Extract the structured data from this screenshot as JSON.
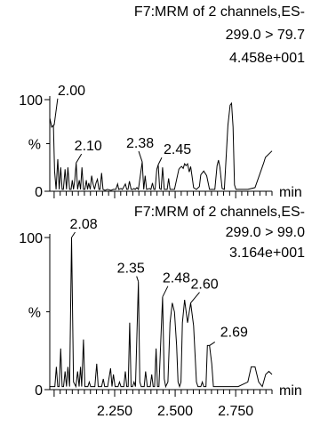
{
  "chart_data": [
    {
      "type": "line",
      "title_lines": [
        "F7:MRM of 2 channels,ES-",
        "299.0 > 79.7",
        "4.458e+001"
      ],
      "ylabel": "%",
      "y_ticks": [
        {
          "value": 0,
          "label": "0"
        },
        {
          "value": 100,
          "label": "100"
        }
      ],
      "xlabel": "min",
      "x_tick_labels": [],
      "xlim": [
        1.982,
        2.9
      ],
      "ylim": [
        0,
        100
      ],
      "grid": false,
      "annotations": [
        {
          "label": "2.00",
          "x": 2.0,
          "y": 72
        },
        {
          "label": "2.10",
          "x": 2.091,
          "y": 31
        },
        {
          "label": "2.38",
          "x": 2.364,
          "y": 32
        },
        {
          "label": "2.45",
          "x": 2.43,
          "y": 29
        }
      ],
      "series": [
        {
          "values": [
            [
              1.982,
              80
            ],
            [
              1.99,
              70
            ],
            [
              1.997,
              72
            ],
            [
              2.002,
              22
            ],
            [
              2.008,
              2
            ],
            [
              2.015,
              35
            ],
            [
              2.021,
              2
            ],
            [
              2.027,
              26
            ],
            [
              2.033,
              2
            ],
            [
              2.038,
              2
            ],
            [
              2.045,
              24
            ],
            [
              2.051,
              2
            ],
            [
              2.057,
              26
            ],
            [
              2.064,
              2
            ],
            [
              2.07,
              2
            ],
            [
              2.075,
              12
            ],
            [
              2.08,
              2
            ],
            [
              2.085,
              12
            ],
            [
              2.091,
              31
            ],
            [
              2.097,
              2
            ],
            [
              2.104,
              12
            ],
            [
              2.109,
              2
            ],
            [
              2.115,
              26
            ],
            [
              2.121,
              2
            ],
            [
              2.127,
              2
            ],
            [
              2.133,
              12
            ],
            [
              2.138,
              2
            ],
            [
              2.143,
              9
            ],
            [
              2.149,
              2
            ],
            [
              2.155,
              17
            ],
            [
              2.161,
              8
            ],
            [
              2.167,
              2
            ],
            [
              2.173,
              9
            ],
            [
              2.179,
              13
            ],
            [
              2.185,
              2
            ],
            [
              2.19,
              2
            ],
            [
              2.196,
              20
            ],
            [
              2.202,
              2
            ],
            [
              2.21,
              1
            ],
            [
              2.22,
              2
            ],
            [
              2.235,
              1
            ],
            [
              2.245,
              2
            ],
            [
              2.255,
              2
            ],
            [
              2.262,
              8
            ],
            [
              2.267,
              2
            ],
            [
              2.276,
              3
            ],
            [
              2.282,
              2
            ],
            [
              2.294,
              8
            ],
            [
              2.3,
              2
            ],
            [
              2.305,
              2
            ],
            [
              2.311,
              11
            ],
            [
              2.318,
              2
            ],
            [
              2.325,
              2
            ],
            [
              2.33,
              3
            ],
            [
              2.335,
              2
            ],
            [
              2.342,
              4
            ],
            [
              2.348,
              2
            ],
            [
              2.364,
              32
            ],
            [
              2.37,
              2
            ],
            [
              2.376,
              17
            ],
            [
              2.382,
              2
            ],
            [
              2.394,
              3
            ],
            [
              2.4,
              2
            ],
            [
              2.406,
              9
            ],
            [
              2.412,
              2
            ],
            [
              2.417,
              2
            ],
            [
              2.424,
              24
            ],
            [
              2.43,
              29
            ],
            [
              2.436,
              3
            ],
            [
              2.442,
              2
            ],
            [
              2.448,
              26
            ],
            [
              2.455,
              2
            ],
            [
              2.462,
              2
            ],
            [
              2.467,
              2
            ],
            [
              2.473,
              14
            ],
            [
              2.479,
              2
            ],
            [
              2.497,
              2
            ],
            [
              2.515,
              24
            ],
            [
              2.521,
              26
            ],
            [
              2.527,
              27
            ],
            [
              2.533,
              25
            ],
            [
              2.539,
              30
            ],
            [
              2.545,
              28
            ],
            [
              2.551,
              30
            ],
            [
              2.558,
              21
            ],
            [
              2.564,
              27
            ],
            [
              2.57,
              16
            ],
            [
              2.576,
              4
            ],
            [
              2.588,
              2
            ],
            [
              2.6,
              5
            ],
            [
              2.606,
              18
            ],
            [
              2.618,
              22
            ],
            [
              2.63,
              17
            ],
            [
              2.642,
              2
            ],
            [
              2.654,
              2
            ],
            [
              2.664,
              2
            ],
            [
              2.673,
              28
            ],
            [
              2.679,
              34
            ],
            [
              2.685,
              26
            ],
            [
              2.694,
              3
            ],
            [
              2.703,
              2
            ],
            [
              2.718,
              72
            ],
            [
              2.727,
              94
            ],
            [
              2.733,
              96
            ],
            [
              2.739,
              70
            ],
            [
              2.745,
              7
            ],
            [
              2.751,
              2
            ],
            [
              2.8,
              2
            ],
            [
              2.83,
              4
            ],
            [
              2.866,
              31
            ],
            [
              2.873,
              37
            ],
            [
              2.9,
              44
            ]
          ]
        }
      ]
    },
    {
      "type": "line",
      "title_lines": [
        "F7:MRM of 2 channels,ES-",
        "299.0 > 99.0",
        "3.164e+001"
      ],
      "ylabel": "%",
      "y_ticks": [
        {
          "value": 0,
          "label": "0"
        },
        {
          "value": 100,
          "label": "100"
        }
      ],
      "xlabel": "min",
      "x_tick_labels": [
        "2.250",
        "2.500",
        "2.750"
      ],
      "xlim": [
        1.982,
        2.9
      ],
      "ylim": [
        0,
        100
      ],
      "grid": false,
      "annotations": [
        {
          "label": "2.08",
          "x": 2.072,
          "y": 100
        },
        {
          "label": "2.35",
          "x": 2.348,
          "y": 71
        },
        {
          "label": "2.48",
          "x": 2.448,
          "y": 61
        },
        {
          "label": "2.60",
          "x": 2.564,
          "y": 57
        },
        {
          "label": "2.69",
          "x": 2.642,
          "y": 29
        }
      ],
      "series": [
        {
          "values": [
            [
              1.982,
              2
            ],
            [
              1.99,
              2
            ],
            [
              1.997,
              2
            ],
            [
              2.003,
              2
            ],
            [
              2.009,
              15
            ],
            [
              2.015,
              2
            ],
            [
              2.021,
              2
            ],
            [
              2.027,
              27
            ],
            [
              2.033,
              2
            ],
            [
              2.039,
              2
            ],
            [
              2.045,
              12
            ],
            [
              2.051,
              2
            ],
            [
              2.057,
              15
            ],
            [
              2.064,
              2
            ],
            [
              2.072,
              100
            ],
            [
              2.08,
              5
            ],
            [
              2.09,
              2
            ],
            [
              2.097,
              12
            ],
            [
              2.103,
              2
            ],
            [
              2.109,
              15
            ],
            [
              2.114,
              2
            ],
            [
              2.121,
              33
            ],
            [
              2.127,
              2
            ],
            [
              2.139,
              2
            ],
            [
              2.145,
              5
            ],
            [
              2.151,
              2
            ],
            [
              2.168,
              2
            ],
            [
              2.176,
              17
            ],
            [
              2.182,
              2
            ],
            [
              2.196,
              2
            ],
            [
              2.203,
              7
            ],
            [
              2.209,
              2
            ],
            [
              2.221,
              2
            ],
            [
              2.233,
              14
            ],
            [
              2.239,
              2
            ],
            [
              2.245,
              10
            ],
            [
              2.252,
              2
            ],
            [
              2.264,
              2
            ],
            [
              2.27,
              5
            ],
            [
              2.276,
              2
            ],
            [
              2.288,
              2
            ],
            [
              2.294,
              12
            ],
            [
              2.3,
              2
            ],
            [
              2.306,
              2
            ],
            [
              2.312,
              44
            ],
            [
              2.318,
              2
            ],
            [
              2.324,
              2
            ],
            [
              2.33,
              5
            ],
            [
              2.336,
              2
            ],
            [
              2.348,
              71
            ],
            [
              2.354,
              5
            ],
            [
              2.36,
              2
            ],
            [
              2.372,
              2
            ],
            [
              2.378,
              12
            ],
            [
              2.385,
              2
            ],
            [
              2.397,
              2
            ],
            [
              2.403,
              10
            ],
            [
              2.409,
              2
            ],
            [
              2.415,
              2
            ],
            [
              2.421,
              27
            ],
            [
              2.427,
              2
            ],
            [
              2.433,
              2
            ],
            [
              2.448,
              61
            ],
            [
              2.455,
              7
            ],
            [
              2.461,
              2
            ],
            [
              2.47,
              5
            ],
            [
              2.479,
              44
            ],
            [
              2.488,
              57
            ],
            [
              2.497,
              51
            ],
            [
              2.506,
              29
            ],
            [
              2.512,
              5
            ],
            [
              2.518,
              2
            ],
            [
              2.524,
              5
            ],
            [
              2.53,
              44
            ],
            [
              2.539,
              59
            ],
            [
              2.551,
              44
            ],
            [
              2.564,
              57
            ],
            [
              2.576,
              42
            ],
            [
              2.588,
              5
            ],
            [
              2.594,
              2
            ],
            [
              2.606,
              2
            ],
            [
              2.612,
              5
            ],
            [
              2.618,
              2
            ],
            [
              2.627,
              2
            ],
            [
              2.633,
              29
            ],
            [
              2.642,
              29
            ],
            [
              2.651,
              17
            ],
            [
              2.658,
              2
            ],
            [
              2.67,
              2
            ],
            [
              2.69,
              2
            ],
            [
              2.72,
              2
            ],
            [
              2.76,
              2
            ],
            [
              2.8,
              5
            ],
            [
              2.814,
              15
            ],
            [
              2.83,
              15
            ],
            [
              2.845,
              5
            ],
            [
              2.86,
              2
            ],
            [
              2.874,
              10
            ],
            [
              2.887,
              12
            ],
            [
              2.9,
              10
            ]
          ]
        }
      ]
    }
  ]
}
